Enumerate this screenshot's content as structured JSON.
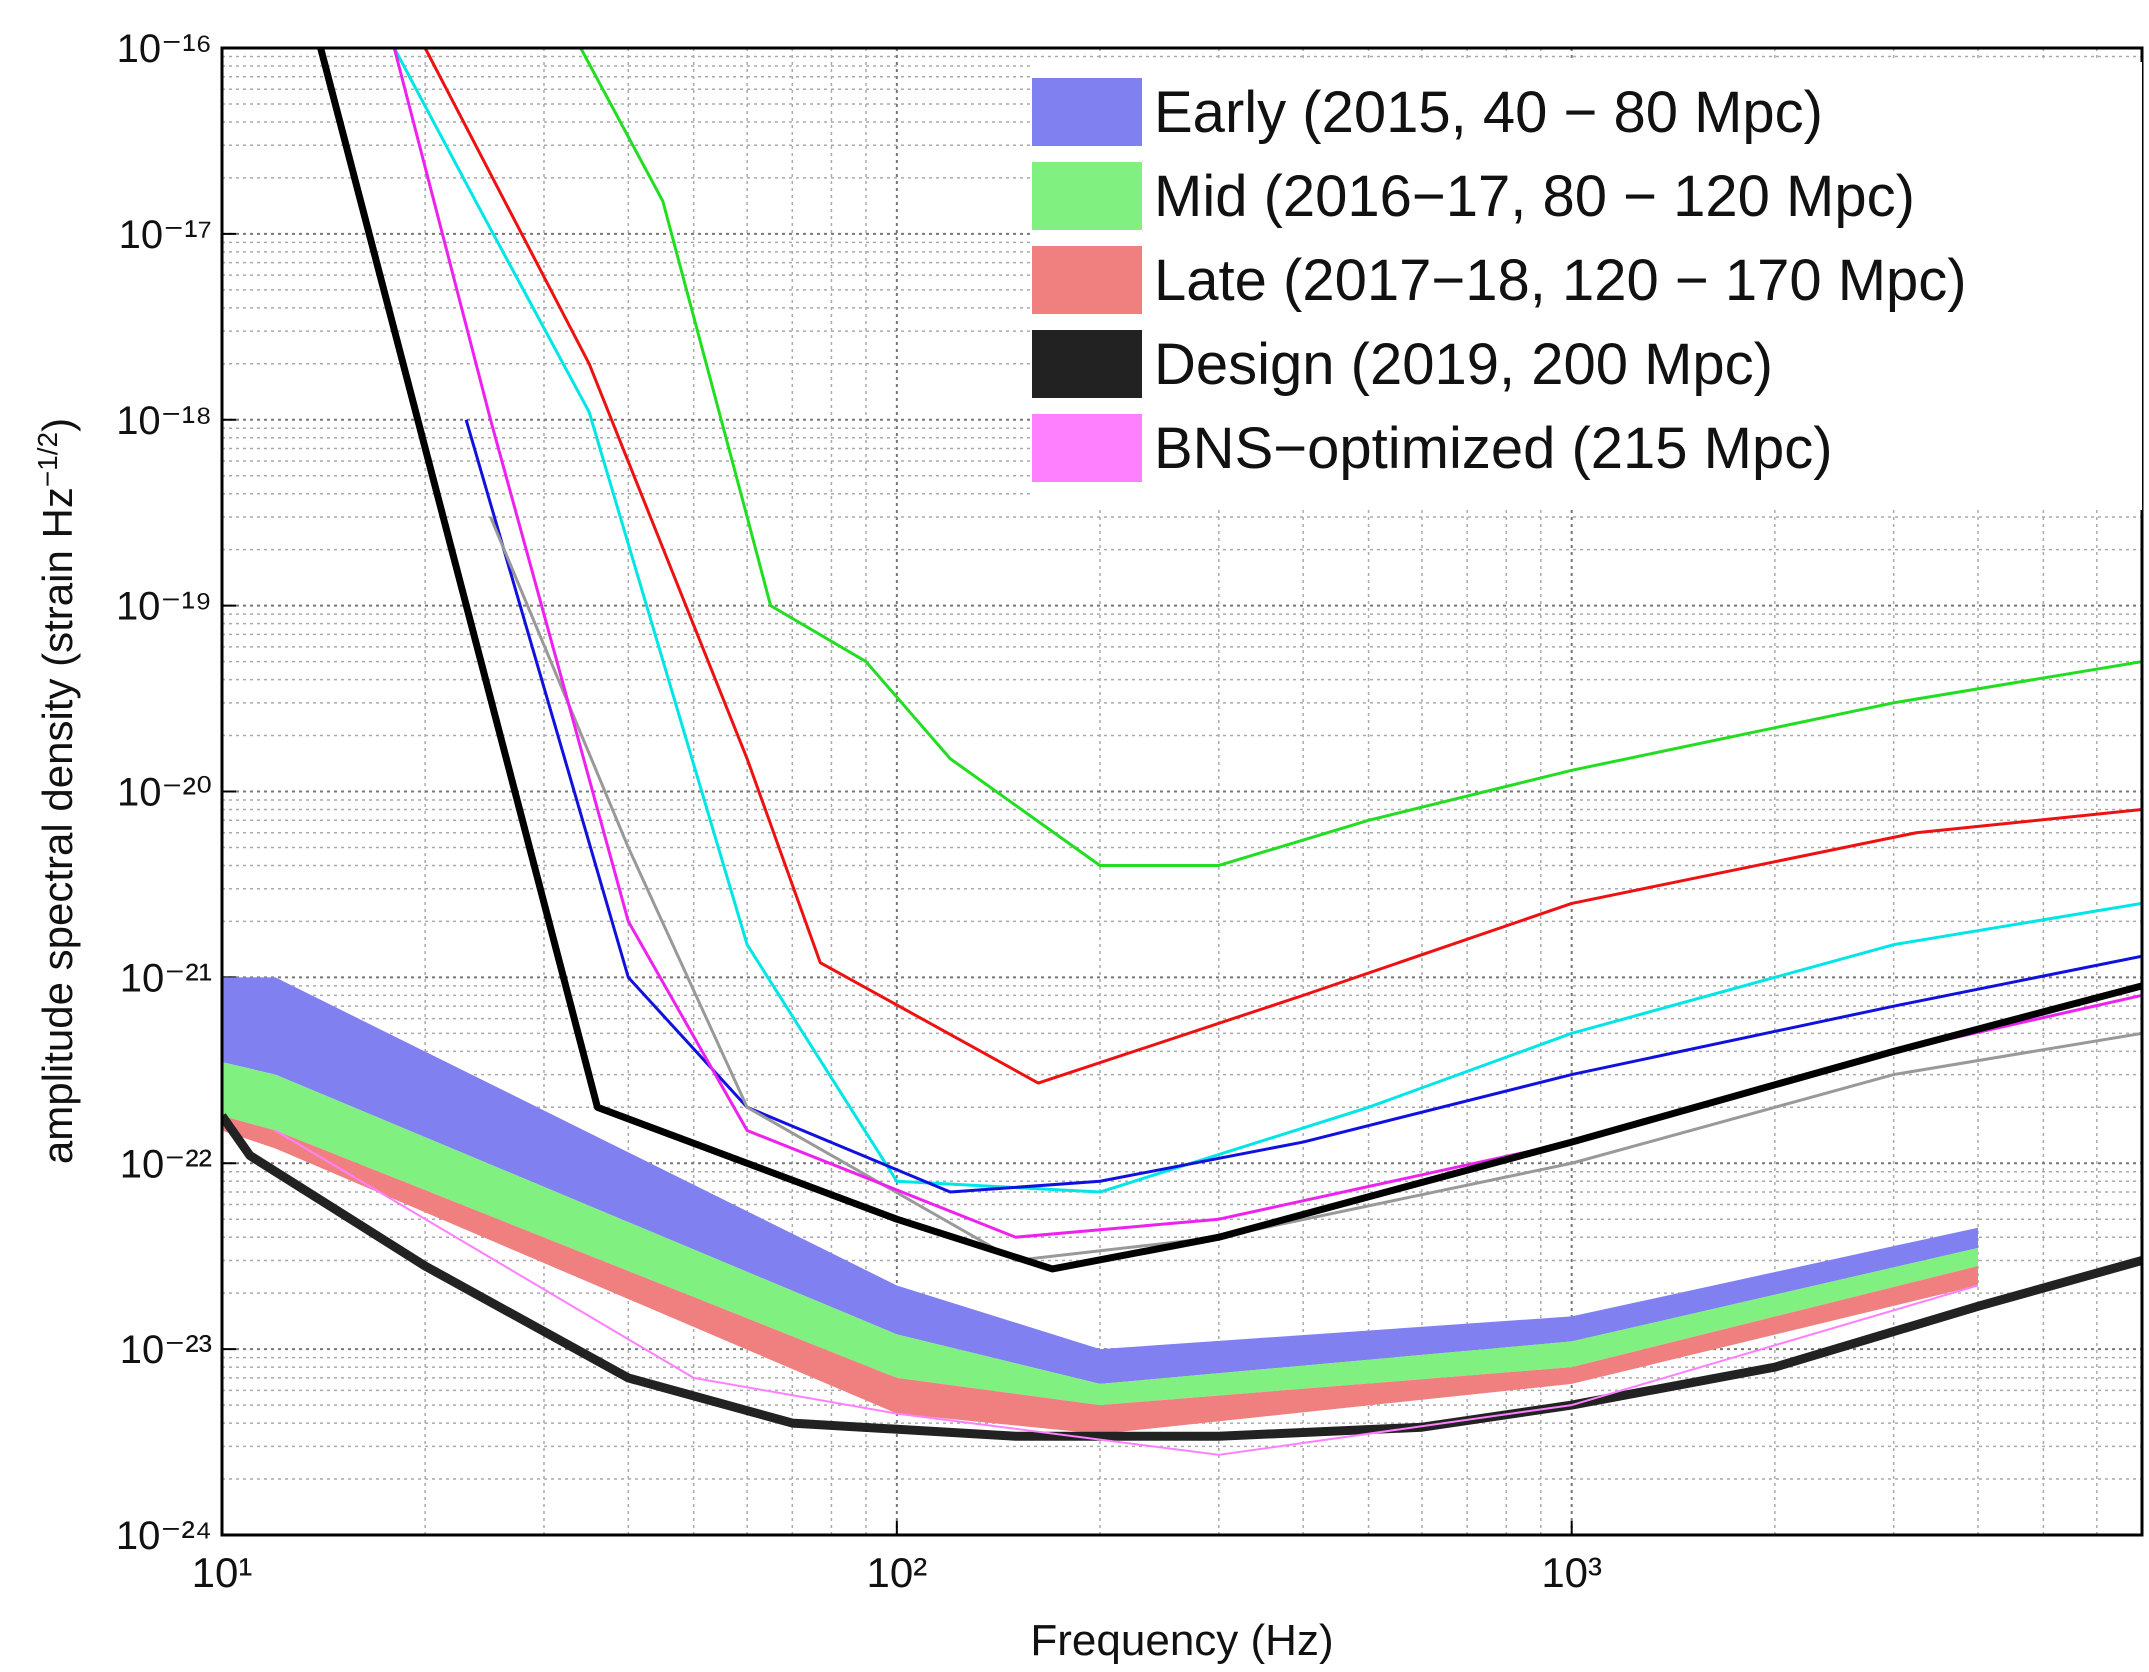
{
  "chart_data": {
    "type": "line",
    "xlabel": "Frequency (Hz)",
    "ylabel": "amplitude spectral density (strain Hz",
    "ylabel_sup": "−1/2",
    "ylabel_end": ")",
    "xscale": "log",
    "yscale": "log",
    "xlim": [
      10,
      7000
    ],
    "ylim": [
      1e-24,
      1e-16
    ],
    "xticks": [
      {
        "value": 10,
        "label": "10¹"
      },
      {
        "value": 100,
        "label": "10²"
      },
      {
        "value": 1000,
        "label": "10³"
      }
    ],
    "yticks": [
      {
        "value": 1e-24,
        "label": "10⁻²⁴"
      },
      {
        "value": 1e-23,
        "label": "10⁻²³"
      },
      {
        "value": 1e-22,
        "label": "10⁻²²"
      },
      {
        "value": 1e-21,
        "label": "10⁻²¹"
      },
      {
        "value": 1e-20,
        "label": "10⁻²⁰"
      },
      {
        "value": 1e-19,
        "label": "10⁻¹⁹"
      },
      {
        "value": 1e-18,
        "label": "10⁻¹⁸"
      },
      {
        "value": 1e-17,
        "label": "10⁻¹⁷"
      },
      {
        "value": 1e-16,
        "label": "10⁻¹⁶"
      }
    ],
    "grid": true,
    "minor_grid": true,
    "legend": "upper right",
    "series": [
      {
        "name": "Early (2015, 40 − 80 Mpc)",
        "color": "#8080f0",
        "x": [
          10,
          12,
          100,
          200,
          1000,
          4000
        ],
        "upper": [
          1e-21,
          1e-21,
          2.2e-23,
          1e-23,
          1.5e-23,
          4.5e-23
        ],
        "lower": [
          3.5e-22,
          3e-22,
          1.2e-23,
          6.5e-24,
          1.1e-23,
          3.5e-23
        ]
      },
      {
        "name": "Mid (2016−17, 80 − 120 Mpc)",
        "color": "#80f080",
        "x": [
          10,
          12,
          100,
          200,
          1000,
          4000
        ],
        "upper": [
          3.5e-22,
          3e-22,
          1.2e-23,
          6.5e-24,
          1.1e-23,
          3.5e-23
        ],
        "lower": [
          1.8e-22,
          1.5e-22,
          7e-24,
          5e-24,
          8e-24,
          2.8e-23
        ]
      },
      {
        "name": "Late (2017−18, 120 − 170 Mpc)",
        "color": "#f08080",
        "x": [
          10,
          12,
          100,
          200,
          1000,
          4000
        ],
        "upper": [
          1.8e-22,
          1.5e-22,
          7e-24,
          5e-24,
          8e-24,
          2.8e-23
        ],
        "lower": [
          1.5e-22,
          1.2e-22,
          4.5e-24,
          3.5e-24,
          6.5e-24,
          2.2e-23
        ]
      },
      {
        "color": "#22dd22",
        "x": [
          34,
          45,
          60,
          65,
          90,
          120,
          200,
          300,
          500,
          1000,
          3000,
          7000
        ],
        "values": [
          1e-16,
          1.5e-17,
          3e-19,
          1e-19,
          5e-20,
          1.5e-20,
          4e-21,
          4e-21,
          7e-21,
          1.3e-20,
          3e-20,
          5e-20
        ],
        "linewidth": 3
      },
      {
        "color": "#ee1111",
        "x": [
          20,
          35,
          60,
          77,
          162,
          400,
          1000,
          3240,
          7000
        ],
        "values": [
          1e-16,
          2e-18,
          1.5e-20,
          1.2e-21,
          2.7e-22,
          8e-22,
          2.5e-21,
          6e-21,
          8e-21
        ],
        "linewidth": 3
      },
      {
        "color": "#00e5e5",
        "x": [
          18,
          24,
          35,
          60,
          100,
          200,
          500,
          1000,
          3000,
          7000
        ],
        "values": [
          1e-16,
          1.4e-17,
          1.1e-18,
          1.5e-21,
          8e-23,
          7e-23,
          2e-22,
          5e-22,
          1.5e-21,
          2.5e-21
        ],
        "linewidth": 3
      },
      {
        "color": "#1111dd",
        "x": [
          23,
          40,
          60,
          120,
          200,
          400,
          1000,
          3000,
          7000
        ],
        "values": [
          1e-18,
          1e-21,
          2e-22,
          7e-23,
          8e-23,
          1.3e-22,
          3e-22,
          7e-22,
          1.3e-21
        ],
        "linewidth": 3
      },
      {
        "color": "#999999",
        "x": [
          25,
          40,
          60,
          150,
          300,
          1000,
          3000,
          7000
        ],
        "values": [
          3e-19,
          5e-21,
          2e-22,
          3e-23,
          4e-23,
          1e-22,
          3e-22,
          5e-22
        ],
        "linewidth": 3
      },
      {
        "color": "#ee22ee",
        "x": [
          18,
          25,
          40,
          60,
          150,
          300,
          1000,
          3000,
          7000
        ],
        "values": [
          1e-16,
          1e-18,
          2e-21,
          1.5e-22,
          4e-23,
          5e-23,
          1.3e-22,
          4e-22,
          8e-22
        ],
        "linewidth": 3
      },
      {
        "color": "#000000",
        "x": [
          14,
          36,
          100,
          170,
          300,
          1000,
          3000,
          7000
        ],
        "values": [
          1e-16,
          2e-22,
          5e-23,
          2.7e-23,
          4e-23,
          1.3e-22,
          4e-22,
          9e-22
        ],
        "linewidth": 7
      },
      {
        "name": "Design (2019, 200 Mpc)",
        "color": "#222222",
        "x": [
          10,
          11,
          20,
          40,
          70,
          150,
          300,
          600,
          1000,
          2000,
          4000,
          7000
        ],
        "values": [
          1.8e-22,
          1.1e-22,
          2.8e-23,
          7e-24,
          4e-24,
          3.4e-24,
          3.4e-24,
          3.8e-24,
          5e-24,
          8e-24,
          1.7e-23,
          3e-23
        ],
        "linewidth": 9
      },
      {
        "name": "BNS−optimized (215 Mpc)",
        "color": "#ff80ff",
        "x": [
          12,
          50,
          100,
          300,
          1000,
          4000
        ],
        "values": [
          1.5e-22,
          7e-24,
          4.5e-24,
          2.7e-24,
          5e-24,
          2.2e-23
        ],
        "linewidth": 2
      }
    ]
  }
}
